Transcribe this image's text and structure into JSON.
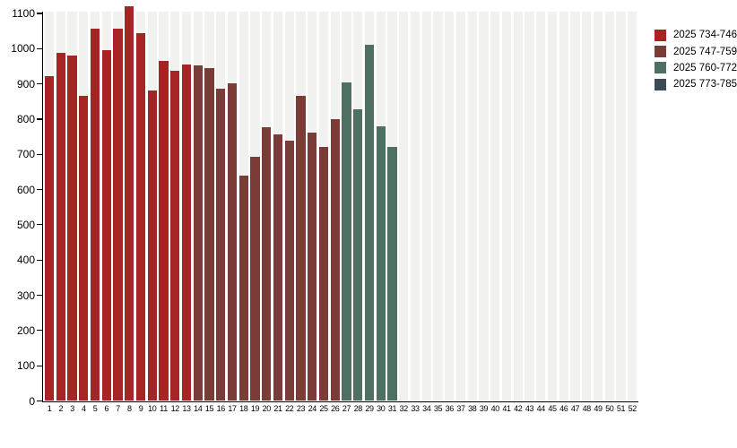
{
  "figure": {
    "background": "#FFFFFF",
    "plot_stripe_color": "#F1F1EF",
    "axis_color": "#000000",
    "text_color": "#000000"
  },
  "legend": {
    "position": "top-right",
    "items": [
      {
        "label": "2025 734-746",
        "color": "#A62423"
      },
      {
        "label": "2025 747-759",
        "color": "#7A3C37"
      },
      {
        "label": "2025 760-772",
        "color": "#4D7063"
      },
      {
        "label": "2025 773-785",
        "color": "#3E4954"
      }
    ]
  },
  "chart_data": {
    "type": "bar",
    "title": "",
    "xlabel": "",
    "ylabel": "",
    "ylim": [
      0,
      1100
    ],
    "y_ticks": [
      0,
      100,
      200,
      300,
      400,
      500,
      600,
      700,
      800,
      900,
      1000,
      1100
    ],
    "x_ticks": [
      1,
      2,
      3,
      4,
      5,
      6,
      7,
      8,
      9,
      10,
      11,
      12,
      13,
      14,
      15,
      16,
      17,
      18,
      19,
      20,
      21,
      22,
      23,
      24,
      25,
      26,
      27,
      28,
      29,
      30,
      31,
      32,
      33,
      34,
      35,
      36,
      37,
      38,
      39,
      40,
      41,
      42,
      43,
      44,
      45,
      46,
      47,
      48,
      49,
      50,
      51,
      52
    ],
    "grid": "vertical-stripes",
    "legend_position": "top-right",
    "series": [
      {
        "name": "2025 734-746",
        "color": "#A62423",
        "week_start": 1,
        "values": [
          922,
          988,
          980,
          866,
          1057,
          995,
          1057,
          1120,
          1043,
          880,
          966,
          937,
          956
        ]
      },
      {
        "name": "2025 747-759",
        "color": "#7A3C37",
        "week_start": 14,
        "values": [
          952,
          945,
          886,
          902,
          640,
          694,
          778,
          757,
          740,
          866,
          762,
          720,
          799
        ]
      },
      {
        "name": "2025 760-772",
        "color": "#4D7063",
        "week_start": 27,
        "values": [
          904,
          828,
          1010,
          779,
          722
        ]
      },
      {
        "name": "2025 773-785",
        "color": "#3E4954",
        "week_start": 40,
        "values": []
      }
    ]
  }
}
